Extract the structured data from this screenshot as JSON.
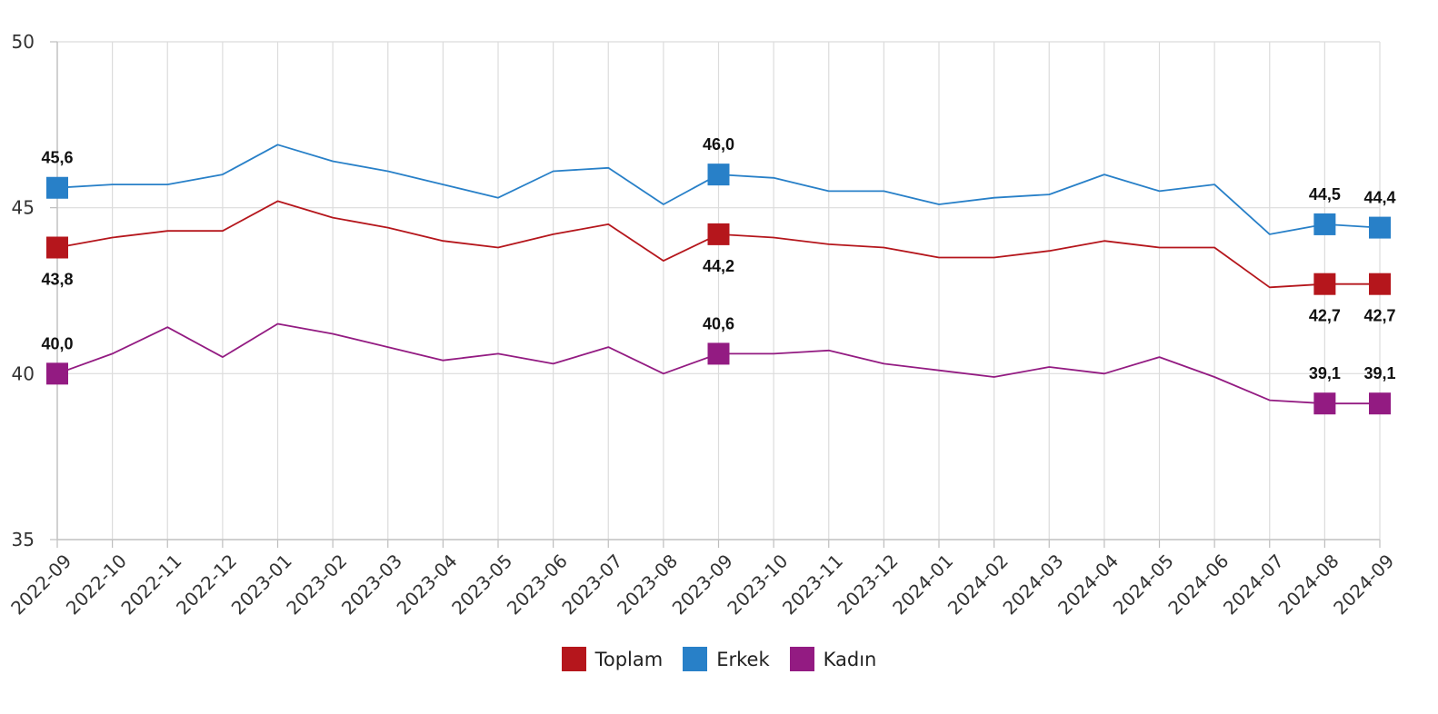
{
  "chart_data": {
    "type": "line",
    "categories": [
      "2022-09",
      "2022-10",
      "2022-11",
      "2022-12",
      "2023-01",
      "2023-02",
      "2023-03",
      "2023-04",
      "2023-05",
      "2023-06",
      "2023-07",
      "2023-08",
      "2023-09",
      "2023-10",
      "2023-11",
      "2023-12",
      "2024-01",
      "2024-02",
      "2024-03",
      "2024-04",
      "2024-05",
      "2024-06",
      "2024-07",
      "2024-08",
      "2024-09"
    ],
    "ylim": [
      35,
      50
    ],
    "yticks": [
      "35",
      "40",
      "45",
      "50"
    ],
    "grid": true,
    "legend_position": "bottom-center",
    "series": [
      {
        "name": "Toplam",
        "color": "#b5161c",
        "values": [
          43.8,
          44.1,
          44.3,
          44.3,
          45.2,
          44.7,
          44.4,
          44.0,
          43.8,
          44.2,
          44.5,
          43.4,
          44.2,
          44.1,
          43.9,
          43.8,
          43.5,
          43.5,
          43.7,
          44.0,
          43.8,
          43.8,
          42.6,
          42.7,
          42.7
        ],
        "labeled_points": [
          {
            "index": 0,
            "label": "43,8",
            "pos": "below"
          },
          {
            "index": 12,
            "label": "44,2",
            "pos": "below"
          },
          {
            "index": 23,
            "label": "42,7",
            "pos": "below"
          },
          {
            "index": 24,
            "label": "42,7",
            "pos": "below"
          }
        ]
      },
      {
        "name": "Erkek",
        "color": "#2880c8",
        "values": [
          45.6,
          45.7,
          45.7,
          46.0,
          46.9,
          46.4,
          46.1,
          45.7,
          45.3,
          46.1,
          46.2,
          45.1,
          46.0,
          45.9,
          45.5,
          45.5,
          45.1,
          45.3,
          45.4,
          46.0,
          45.5,
          45.7,
          44.2,
          44.5,
          44.4
        ],
        "labeled_points": [
          {
            "index": 0,
            "label": "45,6",
            "pos": "above"
          },
          {
            "index": 12,
            "label": "46,0",
            "pos": "above"
          },
          {
            "index": 23,
            "label": "44,5",
            "pos": "above"
          },
          {
            "index": 24,
            "label": "44,4",
            "pos": "above"
          }
        ]
      },
      {
        "name": "Kadın",
        "color": "#931b82",
        "values": [
          40.0,
          40.6,
          41.4,
          40.5,
          41.5,
          41.2,
          40.8,
          40.4,
          40.6,
          40.3,
          40.8,
          40.0,
          40.6,
          40.6,
          40.7,
          40.3,
          40.1,
          39.9,
          40.2,
          40.0,
          40.5,
          39.9,
          39.2,
          39.1,
          39.1
        ],
        "labeled_points": [
          {
            "index": 0,
            "label": "40,0",
            "pos": "above"
          },
          {
            "index": 12,
            "label": "40,6",
            "pos": "above"
          },
          {
            "index": 23,
            "label": "39,1",
            "pos": "above"
          },
          {
            "index": 24,
            "label": "39,1",
            "pos": "above"
          }
        ]
      }
    ]
  }
}
